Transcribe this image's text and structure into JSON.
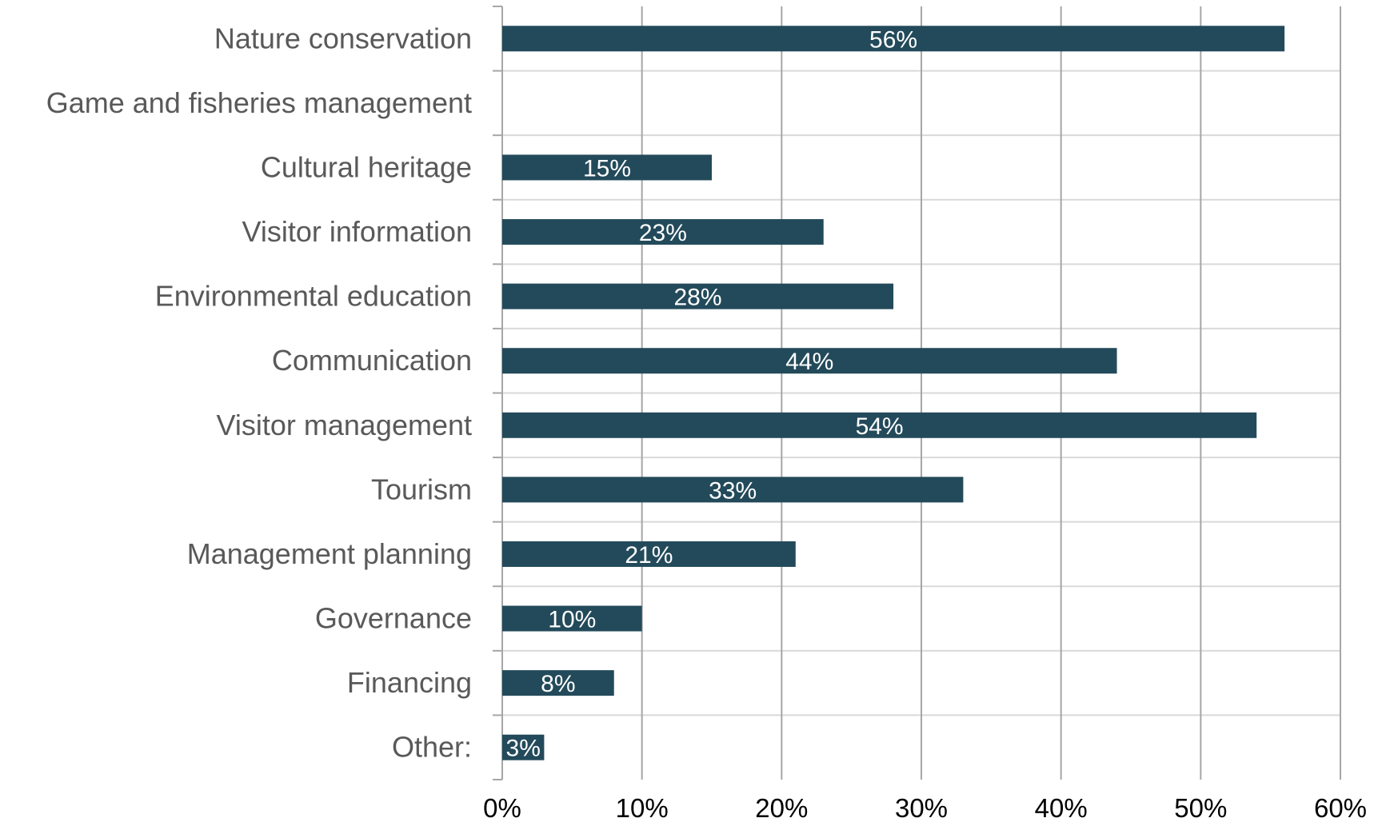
{
  "chart_data": {
    "type": "bar",
    "orientation": "horizontal",
    "categories": [
      "Nature conservation",
      "Game and fisheries management",
      "Cultural heritage",
      "Visitor information",
      "Environmental education",
      "Communication",
      "Visitor management",
      "Tourism",
      "Management planning",
      "Governance",
      "Financing",
      "Other:"
    ],
    "values": [
      56,
      null,
      15,
      23,
      28,
      44,
      54,
      33,
      21,
      10,
      8,
      3
    ],
    "data_labels": [
      "56%",
      "",
      "15%",
      "23%",
      "28%",
      "44%",
      "54%",
      "33%",
      "21%",
      "10%",
      "8%",
      "3%"
    ],
    "xlim": [
      0,
      60
    ],
    "x_ticks": [
      0,
      10,
      20,
      30,
      40,
      50,
      60
    ],
    "x_tick_labels": [
      "0%",
      "10%",
      "20%",
      "30%",
      "40%",
      "50%",
      "60%"
    ],
    "unit": "%",
    "title": "",
    "xlabel": "",
    "ylabel": "",
    "grid": true,
    "legend": "none",
    "colors": {
      "bar": "#234a5a",
      "grid": "#a6a6a6",
      "category_text": "#595959",
      "tick_text": "#000000",
      "data_label_text": "#ffffff"
    }
  }
}
